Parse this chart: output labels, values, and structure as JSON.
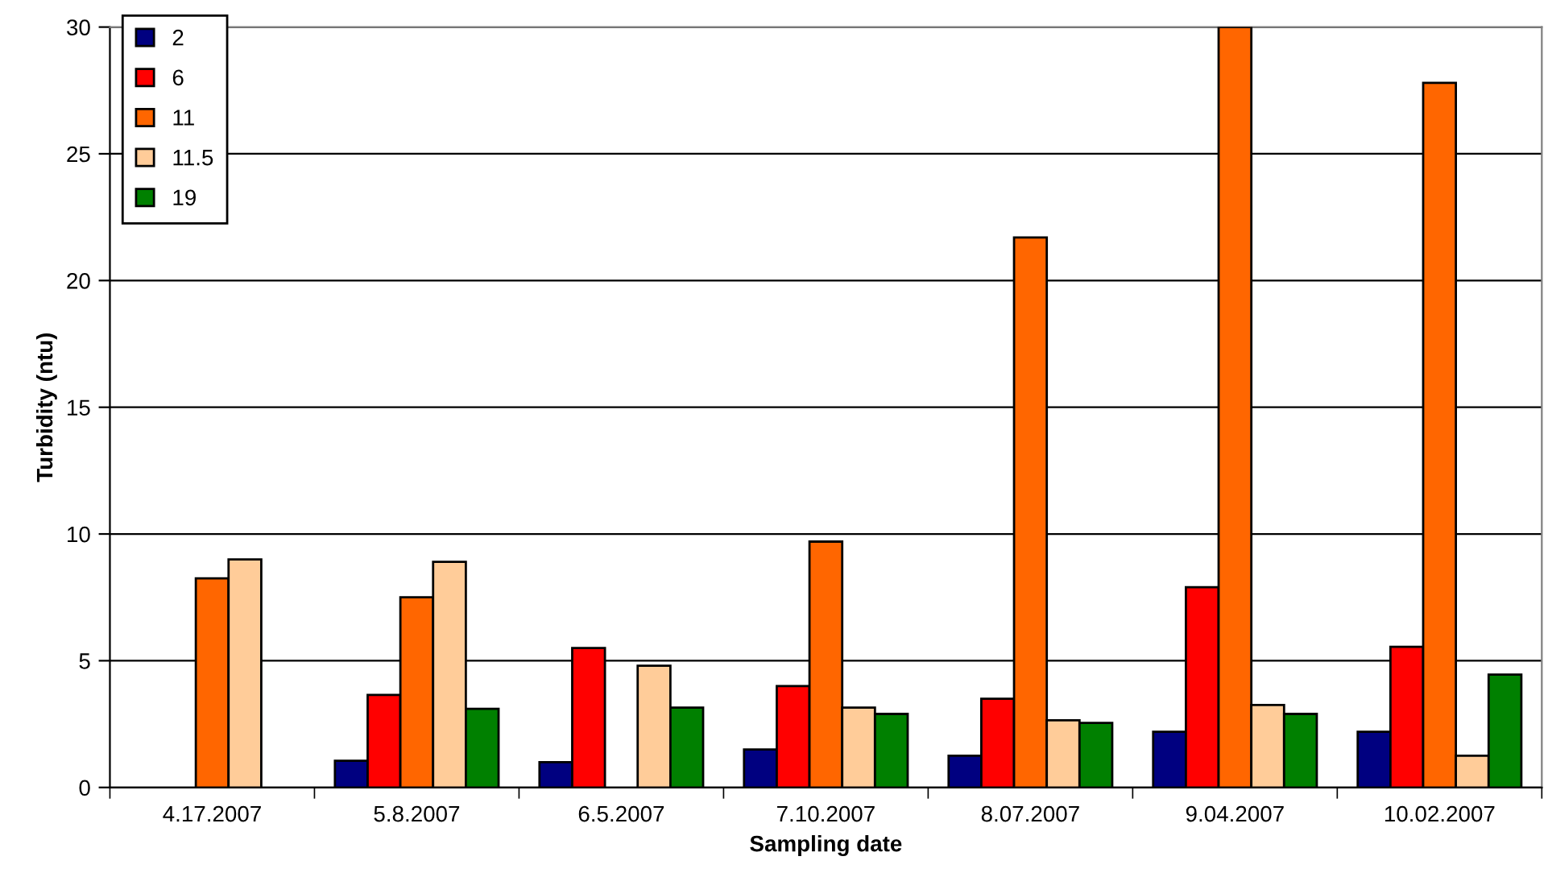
{
  "chart_data": {
    "type": "bar",
    "xlabel": "Sampling date",
    "ylabel": "Turbidity (ntu)",
    "categories": [
      "4.17.2007",
      "5.8.2007",
      "6.5.2007",
      "7.10.2007",
      "8.07.2007",
      "9.04.2007",
      "10.02.2007"
    ],
    "series": [
      {
        "name": "2",
        "color": "#000080",
        "values": [
          null,
          1.05,
          1.0,
          1.5,
          1.25,
          2.2,
          2.2
        ]
      },
      {
        "name": "6",
        "color": "#ff0000",
        "values": [
          null,
          3.65,
          5.5,
          4.0,
          3.5,
          7.9,
          5.55
        ]
      },
      {
        "name": "11",
        "color": "#ff6600",
        "values": [
          8.25,
          7.5,
          null,
          9.7,
          21.7,
          30,
          27.8
        ]
      },
      {
        "name": "11.5",
        "color": "#ffcc99",
        "values": [
          9.0,
          8.9,
          4.8,
          3.15,
          2.65,
          3.25,
          1.25
        ]
      },
      {
        "name": "19",
        "color": "#008000",
        "values": [
          null,
          3.1,
          3.15,
          2.9,
          2.55,
          2.9,
          4.45
        ]
      }
    ],
    "ylim": [
      0,
      30
    ],
    "yticks": [
      0,
      5,
      10,
      15,
      20,
      25,
      30
    ],
    "grid": "y",
    "legend": "top left"
  }
}
